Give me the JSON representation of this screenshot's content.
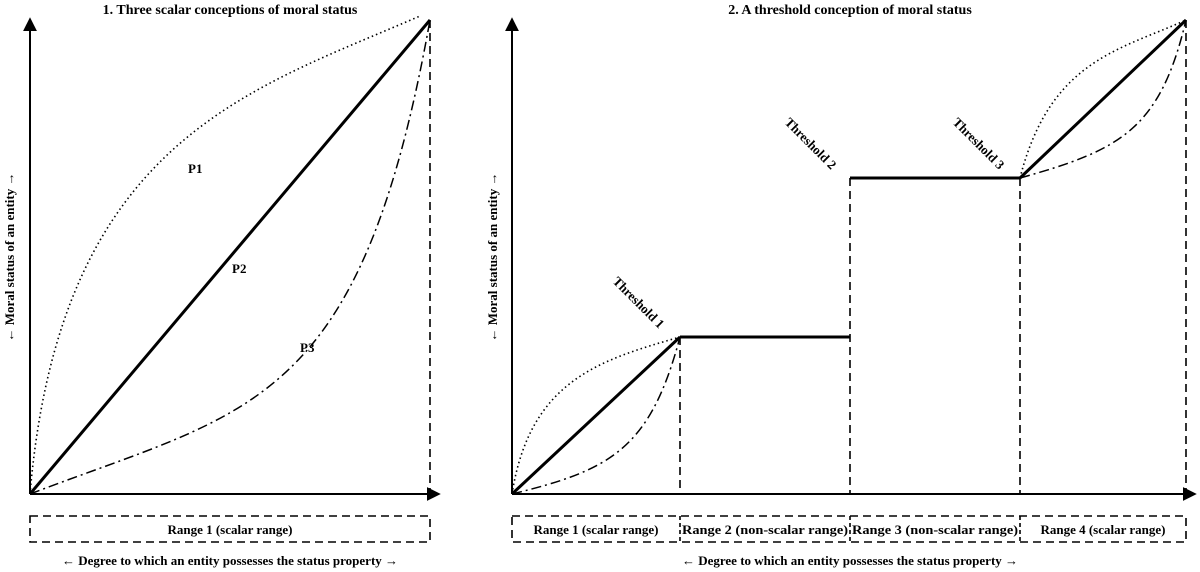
{
  "panel1": {
    "title": "1. Three scalar conceptions of moral status",
    "y_axis_label": "← Moral status of an entity →",
    "x_axis_label": "← Degree to which an entity possesses the status property →",
    "range_label": "Range 1 (scalar range)",
    "curves": [
      {
        "name": "P1",
        "style": "dotted"
      },
      {
        "name": "P2",
        "style": "solid"
      },
      {
        "name": "P3",
        "style": "dash-dot"
      }
    ]
  },
  "panel2": {
    "title": "2. A threshold conception of moral status",
    "y_axis_label": "← Moral status of an entity →",
    "x_axis_label": "← Degree to which an entity possesses the status property →",
    "thresholds": [
      "Threshold 1",
      "Threshold 2",
      "Threshold 3"
    ],
    "ranges": [
      "Range 1 (scalar range)",
      "Range 2 (non-scalar range)",
      "Range 3 (non-scalar range)",
      "Range 4 (scalar range)"
    ]
  },
  "colors": {
    "ink": "#000000",
    "background": "#ffffff"
  }
}
